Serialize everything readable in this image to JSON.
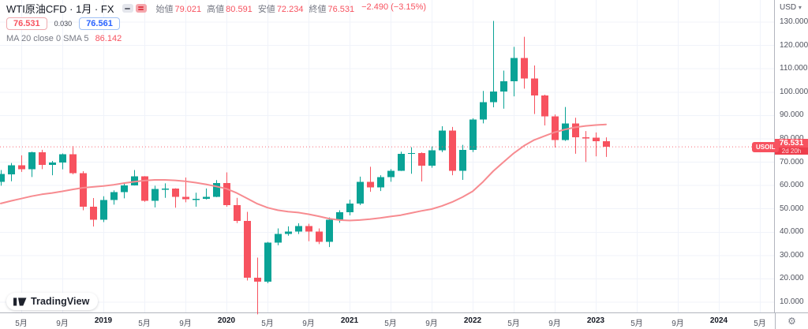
{
  "header": {
    "symbol_title": "WTI原油CFD · 1月 · FX",
    "ohlc": {
      "open_label": "始値",
      "open": "79.021",
      "high_label": "高値",
      "high": "80.591",
      "low_label": "安値",
      "low": "72.234",
      "close_label": "終値",
      "close": "76.531",
      "change": "−2.490 (−3.15%)"
    },
    "sell_price": "76.531",
    "spread": "0.030",
    "buy_price": "76.561",
    "indicator": {
      "label": "MA 20 close 0 SMA 5",
      "value": "86.142"
    }
  },
  "price_axis": {
    "currency": "USD",
    "ticks": [
      130,
      120,
      110,
      100,
      90,
      80,
      70,
      60,
      50,
      40,
      30,
      20,
      10
    ],
    "last_price": "76.531",
    "countdown": "2d 20h"
  },
  "price_label_tag": "USOIL",
  "time_axis": {
    "ticks": [
      {
        "label": "5月",
        "i": 2,
        "bold": false
      },
      {
        "label": "9月",
        "i": 6,
        "bold": false
      },
      {
        "label": "2019",
        "i": 10,
        "bold": true
      },
      {
        "label": "5月",
        "i": 14,
        "bold": false
      },
      {
        "label": "9月",
        "i": 18,
        "bold": false
      },
      {
        "label": "2020",
        "i": 22,
        "bold": true
      },
      {
        "label": "5月",
        "i": 26,
        "bold": false
      },
      {
        "label": "9月",
        "i": 30,
        "bold": false
      },
      {
        "label": "2021",
        "i": 34,
        "bold": true
      },
      {
        "label": "5月",
        "i": 38,
        "bold": false
      },
      {
        "label": "9月",
        "i": 42,
        "bold": false
      },
      {
        "label": "2022",
        "i": 46,
        "bold": true
      },
      {
        "label": "5月",
        "i": 50,
        "bold": false
      },
      {
        "label": "9月",
        "i": 54,
        "bold": false
      },
      {
        "label": "2023",
        "i": 58,
        "bold": true
      },
      {
        "label": "5月",
        "i": 62,
        "bold": false
      },
      {
        "label": "9月",
        "i": 66,
        "bold": false
      },
      {
        "label": "2024",
        "i": 70,
        "bold": true
      },
      {
        "label": "5月",
        "i": 74,
        "bold": false
      }
    ]
  },
  "footer": {
    "logo_text": "TradingView"
  },
  "colors": {
    "up": "#0aa396",
    "down": "#f7525f",
    "ma_line": "#f78b90",
    "grid": "#f0f3fa",
    "price_line": "#f7525f",
    "buy_blue": "#2962ff"
  },
  "chart_data": {
    "type": "candlestick",
    "title": "WTI原油CFD · 1月 · FX",
    "symbol": "USOIL",
    "timeframe": "1 month",
    "ylabel": "USD",
    "ylim": [
      4.5,
      133
    ],
    "price_gridlines": [
      10,
      20,
      30,
      40,
      50,
      60,
      70,
      80,
      90,
      100,
      110,
      120,
      130
    ],
    "months": [
      "2018-03",
      "2018-04",
      "2018-05",
      "2018-06",
      "2018-07",
      "2018-08",
      "2018-09",
      "2018-10",
      "2018-11",
      "2018-12",
      "2019-01",
      "2019-02",
      "2019-03",
      "2019-04",
      "2019-05",
      "2019-06",
      "2019-07",
      "2019-08",
      "2019-09",
      "2019-10",
      "2019-11",
      "2019-12",
      "2020-01",
      "2020-02",
      "2020-03",
      "2020-04",
      "2020-05",
      "2020-06",
      "2020-07",
      "2020-08",
      "2020-09",
      "2020-10",
      "2020-11",
      "2020-12",
      "2021-01",
      "2021-02",
      "2021-03",
      "2021-04",
      "2021-05",
      "2021-06",
      "2021-07",
      "2021-08",
      "2021-09",
      "2021-10",
      "2021-11",
      "2021-12",
      "2022-01",
      "2022-02",
      "2022-03",
      "2022-04",
      "2022-05",
      "2022-06",
      "2022-07",
      "2022-08",
      "2022-09",
      "2022-10",
      "2022-11",
      "2022-12",
      "2023-01",
      "2023-02"
    ],
    "ohlc": [
      [
        61.6,
        66.6,
        59.9,
        64.9
      ],
      [
        64.7,
        69.6,
        61.8,
        68.6
      ],
      [
        68.6,
        72.9,
        65.8,
        67.0
      ],
      [
        67.0,
        74.5,
        63.6,
        74.2
      ],
      [
        74.2,
        75.3,
        67.0,
        68.8
      ],
      [
        68.8,
        70.5,
        64.4,
        69.8
      ],
      [
        69.8,
        73.7,
        66.9,
        73.3
      ],
      [
        73.3,
        76.9,
        64.8,
        65.3
      ],
      [
        65.3,
        66.1,
        49.4,
        50.9
      ],
      [
        50.9,
        54.6,
        42.4,
        45.4
      ],
      [
        45.4,
        55.4,
        44.3,
        53.8
      ],
      [
        53.8,
        57.9,
        51.8,
        57.2
      ],
      [
        57.2,
        60.8,
        54.5,
        60.1
      ],
      [
        60.1,
        66.6,
        60.0,
        63.9
      ],
      [
        63.9,
        64.0,
        53.0,
        53.5
      ],
      [
        53.5,
        59.9,
        50.6,
        58.5
      ],
      [
        58.5,
        60.9,
        54.7,
        58.6
      ],
      [
        58.6,
        58.8,
        50.5,
        55.1
      ],
      [
        55.1,
        63.4,
        52.8,
        54.1
      ],
      [
        54.1,
        56.9,
        50.9,
        54.2
      ],
      [
        54.2,
        58.7,
        54.0,
        55.2
      ],
      [
        55.2,
        62.3,
        55.0,
        61.1
      ],
      [
        61.1,
        65.6,
        50.9,
        51.6
      ],
      [
        51.6,
        54.7,
        43.9,
        44.8
      ],
      [
        44.8,
        48.7,
        19.3,
        20.5
      ],
      [
        20.5,
        29.1,
        4.8,
        18.8
      ],
      [
        18.8,
        35.8,
        18.1,
        35.5
      ],
      [
        35.5,
        41.6,
        34.4,
        39.3
      ],
      [
        39.3,
        42.5,
        38.5,
        40.3
      ],
      [
        40.3,
        43.8,
        39.2,
        42.6
      ],
      [
        42.6,
        43.6,
        36.1,
        40.2
      ],
      [
        40.2,
        41.6,
        34.9,
        35.8
      ],
      [
        35.8,
        46.3,
        33.6,
        45.3
      ],
      [
        45.3,
        49.4,
        44.0,
        48.5
      ],
      [
        48.5,
        53.9,
        47.2,
        52.2
      ],
      [
        52.2,
        63.8,
        51.6,
        61.5
      ],
      [
        61.5,
        68.0,
        57.3,
        59.2
      ],
      [
        59.2,
        64.4,
        57.6,
        63.6
      ],
      [
        63.6,
        67.0,
        61.6,
        66.3
      ],
      [
        66.3,
        74.5,
        66.2,
        73.5
      ],
      [
        73.5,
        76.4,
        65.0,
        73.9
      ],
      [
        73.9,
        74.2,
        61.7,
        68.5
      ],
      [
        68.5,
        76.7,
        67.6,
        75.0
      ],
      [
        75.0,
        85.4,
        74.3,
        83.6
      ],
      [
        83.6,
        85.1,
        64.4,
        66.2
      ],
      [
        66.2,
        77.4,
        62.4,
        75.2
      ],
      [
        75.2,
        88.8,
        74.3,
        88.2
      ],
      [
        88.2,
        100.5,
        86.6,
        95.7
      ],
      [
        95.7,
        130.5,
        93.5,
        100.3
      ],
      [
        100.3,
        109.2,
        92.9,
        104.7
      ],
      [
        104.7,
        119.4,
        98.2,
        114.7
      ],
      [
        114.7,
        123.7,
        101.5,
        105.8
      ],
      [
        105.8,
        111.4,
        90.6,
        98.6
      ],
      [
        98.6,
        98.9,
        85.7,
        89.6
      ],
      [
        89.6,
        90.4,
        76.3,
        79.5
      ],
      [
        79.5,
        93.6,
        79.1,
        86.5
      ],
      [
        86.5,
        89.0,
        73.6,
        80.6
      ],
      [
        80.6,
        83.3,
        70.1,
        80.5
      ],
      [
        80.5,
        82.7,
        72.5,
        79.0
      ],
      [
        79.021,
        80.591,
        72.234,
        76.531
      ]
    ],
    "ma": {
      "name": "MA 20 close 0 SMA 5",
      "last_value": 86.142,
      "values": [
        52.3,
        53.4,
        54.4,
        55.4,
        56.2,
        56.8,
        57.5,
        58.3,
        59.0,
        59.4,
        59.8,
        60.3,
        61.0,
        61.6,
        62.1,
        62.4,
        62.4,
        62.2,
        61.8,
        61.2,
        60.5,
        59.6,
        58.6,
        56.8,
        54.5,
        52.2,
        50.5,
        49.4,
        48.8,
        48.4,
        47.7,
        46.8,
        45.8,
        45.2,
        45.0,
        45.2,
        45.6,
        46.1,
        46.7,
        47.3,
        48.2,
        49.1,
        49.9,
        51.2,
        52.9,
        55.0,
        57.5,
        61.5,
        66.1,
        70.0,
        73.8,
        77.0,
        79.5,
        81.2,
        82.8,
        84.0,
        84.9,
        85.5,
        85.9,
        86.142
      ]
    },
    "last": {
      "price": 76.531,
      "countdown": "2d 20h",
      "tag": "USOIL"
    }
  }
}
